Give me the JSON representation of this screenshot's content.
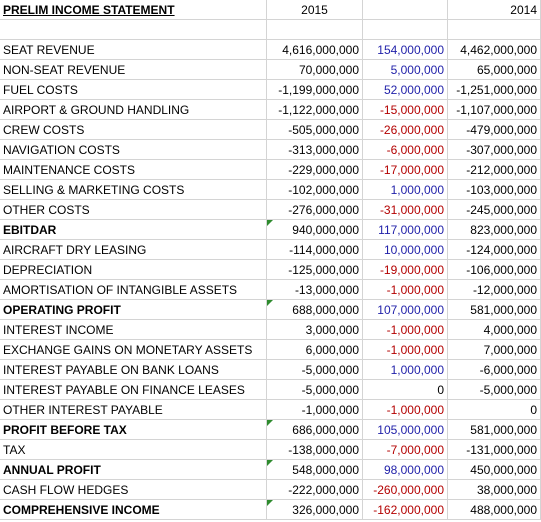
{
  "sheet": {
    "title": "PRELIM INCOME STATEMENT",
    "col_2015": "2015",
    "col_change": "",
    "col_2014": "2014",
    "rows": [
      {
        "label": "SEAT REVENUE",
        "v2015": "4,616,000,000",
        "change": "154,000,000",
        "changeColor": "blue",
        "v2014": "4,462,000,000",
        "bold": false,
        "flag": false
      },
      {
        "label": "NON-SEAT REVENUE",
        "v2015": "70,000,000",
        "change": "5,000,000",
        "changeColor": "blue",
        "v2014": "65,000,000",
        "bold": false,
        "flag": false
      },
      {
        "label": "FUEL COSTS",
        "v2015": "-1,199,000,000",
        "change": "52,000,000",
        "changeColor": "blue",
        "v2014": "-1,251,000,000",
        "bold": false,
        "flag": false
      },
      {
        "label": "AIRPORT & GROUND HANDLING",
        "v2015": "-1,122,000,000",
        "change": "-15,000,000",
        "changeColor": "red",
        "v2014": "-1,107,000,000",
        "bold": false,
        "flag": false
      },
      {
        "label": "CREW COSTS",
        "v2015": "-505,000,000",
        "change": "-26,000,000",
        "changeColor": "red",
        "v2014": "-479,000,000",
        "bold": false,
        "flag": false
      },
      {
        "label": "NAVIGATION COSTS",
        "v2015": "-313,000,000",
        "change": "-6,000,000",
        "changeColor": "red",
        "v2014": "-307,000,000",
        "bold": false,
        "flag": false
      },
      {
        "label": "MAINTENANCE COSTS",
        "v2015": "-229,000,000",
        "change": "-17,000,000",
        "changeColor": "red",
        "v2014": "-212,000,000",
        "bold": false,
        "flag": false
      },
      {
        "label": "SELLING & MARKETING  COSTS",
        "v2015": "-102,000,000",
        "change": "1,000,000",
        "changeColor": "blue",
        "v2014": "-103,000,000",
        "bold": false,
        "flag": false
      },
      {
        "label": "OTHER COSTS",
        "v2015": "-276,000,000",
        "change": "-31,000,000",
        "changeColor": "red",
        "v2014": "-245,000,000",
        "bold": false,
        "flag": false
      },
      {
        "label": "EBITDAR",
        "v2015": "940,000,000",
        "change": "117,000,000",
        "changeColor": "blue",
        "v2014": "823,000,000",
        "bold": true,
        "flag": true
      },
      {
        "label": "AIRCRAFT DRY LEASING",
        "v2015": "-114,000,000",
        "change": "10,000,000",
        "changeColor": "blue",
        "v2014": "-124,000,000",
        "bold": false,
        "flag": false
      },
      {
        "label": "DEPRECIATION",
        "v2015": "-125,000,000",
        "change": "-19,000,000",
        "changeColor": "red",
        "v2014": "-106,000,000",
        "bold": false,
        "flag": false
      },
      {
        "label": "AMORTISATION OF INTANGIBLE ASSETS",
        "v2015": "-13,000,000",
        "change": "-1,000,000",
        "changeColor": "red",
        "v2014": "-12,000,000",
        "bold": false,
        "flag": false
      },
      {
        "label": "OPERATING PROFIT",
        "v2015": "688,000,000",
        "change": "107,000,000",
        "changeColor": "blue",
        "v2014": "581,000,000",
        "bold": true,
        "flag": true
      },
      {
        "label": "INTEREST INCOME",
        "v2015": "3,000,000",
        "change": "-1,000,000",
        "changeColor": "red",
        "v2014": "4,000,000",
        "bold": false,
        "flag": false
      },
      {
        "label": "EXCHANGE GAINS ON MONETARY ASSETS",
        "v2015": "6,000,000",
        "change": "-1,000,000",
        "changeColor": "red",
        "v2014": "7,000,000",
        "bold": false,
        "flag": false
      },
      {
        "label": "INTEREST PAYABLE ON BANK LOANS",
        "v2015": "-5,000,000",
        "change": "1,000,000",
        "changeColor": "blue",
        "v2014": "-6,000,000",
        "bold": false,
        "flag": false
      },
      {
        "label": "INTEREST PAYABLE ON FINANCE LEASES",
        "v2015": "-5,000,000",
        "change": "0",
        "changeColor": "black",
        "v2014": "-5,000,000",
        "bold": false,
        "flag": false
      },
      {
        "label": "OTHER INTEREST PAYABLE",
        "v2015": "-1,000,000",
        "change": "-1,000,000",
        "changeColor": "red",
        "v2014": "0",
        "bold": false,
        "flag": false
      },
      {
        "label": "PROFIT BEFORE TAX",
        "v2015": "686,000,000",
        "change": "105,000,000",
        "changeColor": "blue",
        "v2014": "581,000,000",
        "bold": true,
        "flag": true
      },
      {
        "label": "TAX",
        "v2015": "-138,000,000",
        "change": "-7,000,000",
        "changeColor": "red",
        "v2014": "-131,000,000",
        "bold": false,
        "flag": false
      },
      {
        "label": "ANNUAL PROFIT",
        "v2015": "548,000,000",
        "change": "98,000,000",
        "changeColor": "blue",
        "v2014": "450,000,000",
        "bold": true,
        "flag": true
      },
      {
        "label": "CASH FLOW HEDGES",
        "v2015": "-222,000,000",
        "change": "-260,000,000",
        "changeColor": "red",
        "v2014": "38,000,000",
        "bold": false,
        "flag": false
      },
      {
        "label": "COMPREHENSIVE INCOME",
        "v2015": "326,000,000",
        "change": "-162,000,000",
        "changeColor": "red",
        "v2014": "488,000,000",
        "bold": true,
        "flag": true
      }
    ]
  },
  "colors": {
    "blue": "#1f1fa8",
    "red": "#b30000",
    "flag": "#2e8b2e"
  }
}
